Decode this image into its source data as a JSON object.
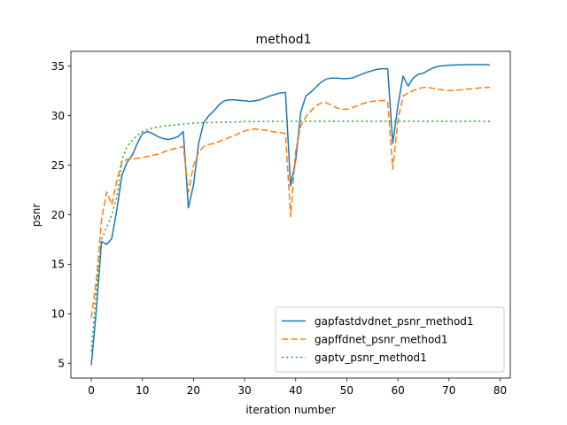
{
  "chart_data": {
    "type": "line",
    "title": "method1",
    "xlabel": "iteration number",
    "ylabel": "psnr",
    "xlim": [
      -4,
      82
    ],
    "ylim": [
      3.5,
      36.5
    ],
    "xticks": [
      0,
      10,
      20,
      30,
      40,
      50,
      60,
      70,
      80
    ],
    "yticks": [
      5,
      10,
      15,
      20,
      25,
      30,
      35
    ],
    "grid": false,
    "legend_position": "lower-right",
    "series": [
      {
        "name": "gapfastdvdnet_psnr_method1",
        "color": "#1f77b4",
        "style": "solid",
        "x": [
          0,
          1,
          2,
          3,
          4,
          5,
          6,
          7,
          8,
          9,
          10,
          11,
          12,
          13,
          14,
          15,
          16,
          17,
          18,
          19,
          20,
          21,
          22,
          23,
          24,
          25,
          26,
          27,
          28,
          29,
          30,
          31,
          32,
          33,
          34,
          35,
          36,
          37,
          38,
          39,
          40,
          41,
          42,
          43,
          44,
          45,
          46,
          47,
          48,
          49,
          50,
          51,
          52,
          53,
          54,
          55,
          56,
          57,
          58,
          59,
          60,
          61,
          62,
          63,
          64,
          65,
          66,
          67,
          68,
          69,
          70,
          71,
          72,
          73,
          74,
          75,
          76,
          77,
          78
        ],
        "values": [
          4.8,
          10.5,
          17.3,
          17.0,
          17.6,
          20.5,
          24.0,
          25.3,
          26.0,
          27.2,
          28.2,
          28.4,
          28.2,
          27.9,
          27.7,
          27.6,
          27.7,
          27.9,
          28.4,
          20.7,
          23.0,
          27.2,
          29.3,
          30.0,
          30.5,
          31.1,
          31.5,
          31.6,
          31.6,
          31.55,
          31.5,
          31.45,
          31.5,
          31.6,
          31.8,
          32.0,
          32.15,
          32.3,
          32.35,
          22.9,
          25.5,
          30.4,
          32.0,
          32.4,
          32.9,
          33.4,
          33.7,
          33.8,
          33.8,
          33.75,
          33.75,
          33.8,
          34.0,
          34.2,
          34.4,
          34.55,
          34.7,
          34.75,
          34.75,
          27.2,
          31.0,
          34.0,
          33.0,
          33.8,
          34.2,
          34.3,
          34.6,
          34.85,
          35.0,
          35.05,
          35.1,
          35.12,
          35.14,
          35.15,
          35.16,
          35.16,
          35.16,
          35.16,
          35.15
        ]
      },
      {
        "name": "gapffdnet_psnr_method1",
        "color": "#ff7f0e",
        "style": "dashed",
        "x": [
          0,
          1,
          2,
          3,
          4,
          5,
          6,
          7,
          8,
          9,
          10,
          11,
          12,
          13,
          14,
          15,
          16,
          17,
          18,
          19,
          20,
          21,
          22,
          23,
          24,
          25,
          26,
          27,
          28,
          29,
          30,
          31,
          32,
          33,
          34,
          35,
          36,
          37,
          38,
          39,
          40,
          41,
          42,
          43,
          44,
          45,
          46,
          47,
          48,
          49,
          50,
          51,
          52,
          53,
          54,
          55,
          56,
          57,
          58,
          59,
          60,
          61,
          62,
          63,
          64,
          65,
          66,
          67,
          68,
          69,
          70,
          71,
          72,
          73,
          74,
          75,
          76,
          77,
          78
        ],
        "values": [
          9.6,
          13.5,
          19.5,
          22.3,
          21.0,
          23.5,
          25.3,
          25.6,
          25.65,
          25.7,
          25.75,
          25.9,
          26.0,
          26.1,
          26.3,
          26.5,
          26.65,
          26.75,
          26.9,
          22.3,
          25.0,
          26.3,
          26.9,
          27.1,
          27.2,
          27.4,
          27.6,
          27.8,
          28.0,
          28.25,
          28.45,
          28.6,
          28.65,
          28.6,
          28.55,
          28.45,
          28.35,
          28.3,
          28.2,
          19.8,
          26.5,
          29.0,
          29.9,
          30.5,
          31.0,
          31.3,
          31.3,
          31.05,
          30.8,
          30.65,
          30.65,
          30.8,
          31.0,
          31.2,
          31.35,
          31.45,
          31.5,
          31.55,
          31.45,
          24.6,
          29.5,
          32.0,
          32.3,
          32.55,
          32.75,
          32.85,
          32.85,
          32.75,
          32.65,
          32.6,
          32.55,
          32.55,
          32.6,
          32.65,
          32.7,
          32.75,
          32.8,
          32.85,
          32.85
        ]
      },
      {
        "name": "gaptv_psnr_method1",
        "color": "#2ca02c",
        "style": "dotted",
        "x": [
          0,
          1,
          2,
          3,
          4,
          5,
          6,
          7,
          8,
          9,
          10,
          11,
          12,
          13,
          14,
          15,
          16,
          17,
          18,
          19,
          20,
          22,
          24,
          26,
          28,
          30,
          32,
          34,
          36,
          38,
          39,
          40,
          45,
          50,
          55,
          60,
          65,
          70,
          75,
          78
        ],
        "values": [
          6.2,
          12.5,
          17.5,
          18.7,
          20.0,
          21.8,
          25.6,
          26.9,
          27.5,
          28.0,
          28.4,
          28.6,
          28.75,
          28.85,
          28.95,
          29.0,
          29.05,
          29.1,
          29.15,
          29.2,
          29.25,
          29.3,
          29.32,
          29.35,
          29.37,
          29.4,
          29.4,
          29.42,
          29.42,
          29.43,
          29.42,
          29.43,
          29.43,
          29.44,
          29.44,
          29.44,
          29.44,
          29.44,
          29.44,
          29.44
        ]
      }
    ]
  }
}
